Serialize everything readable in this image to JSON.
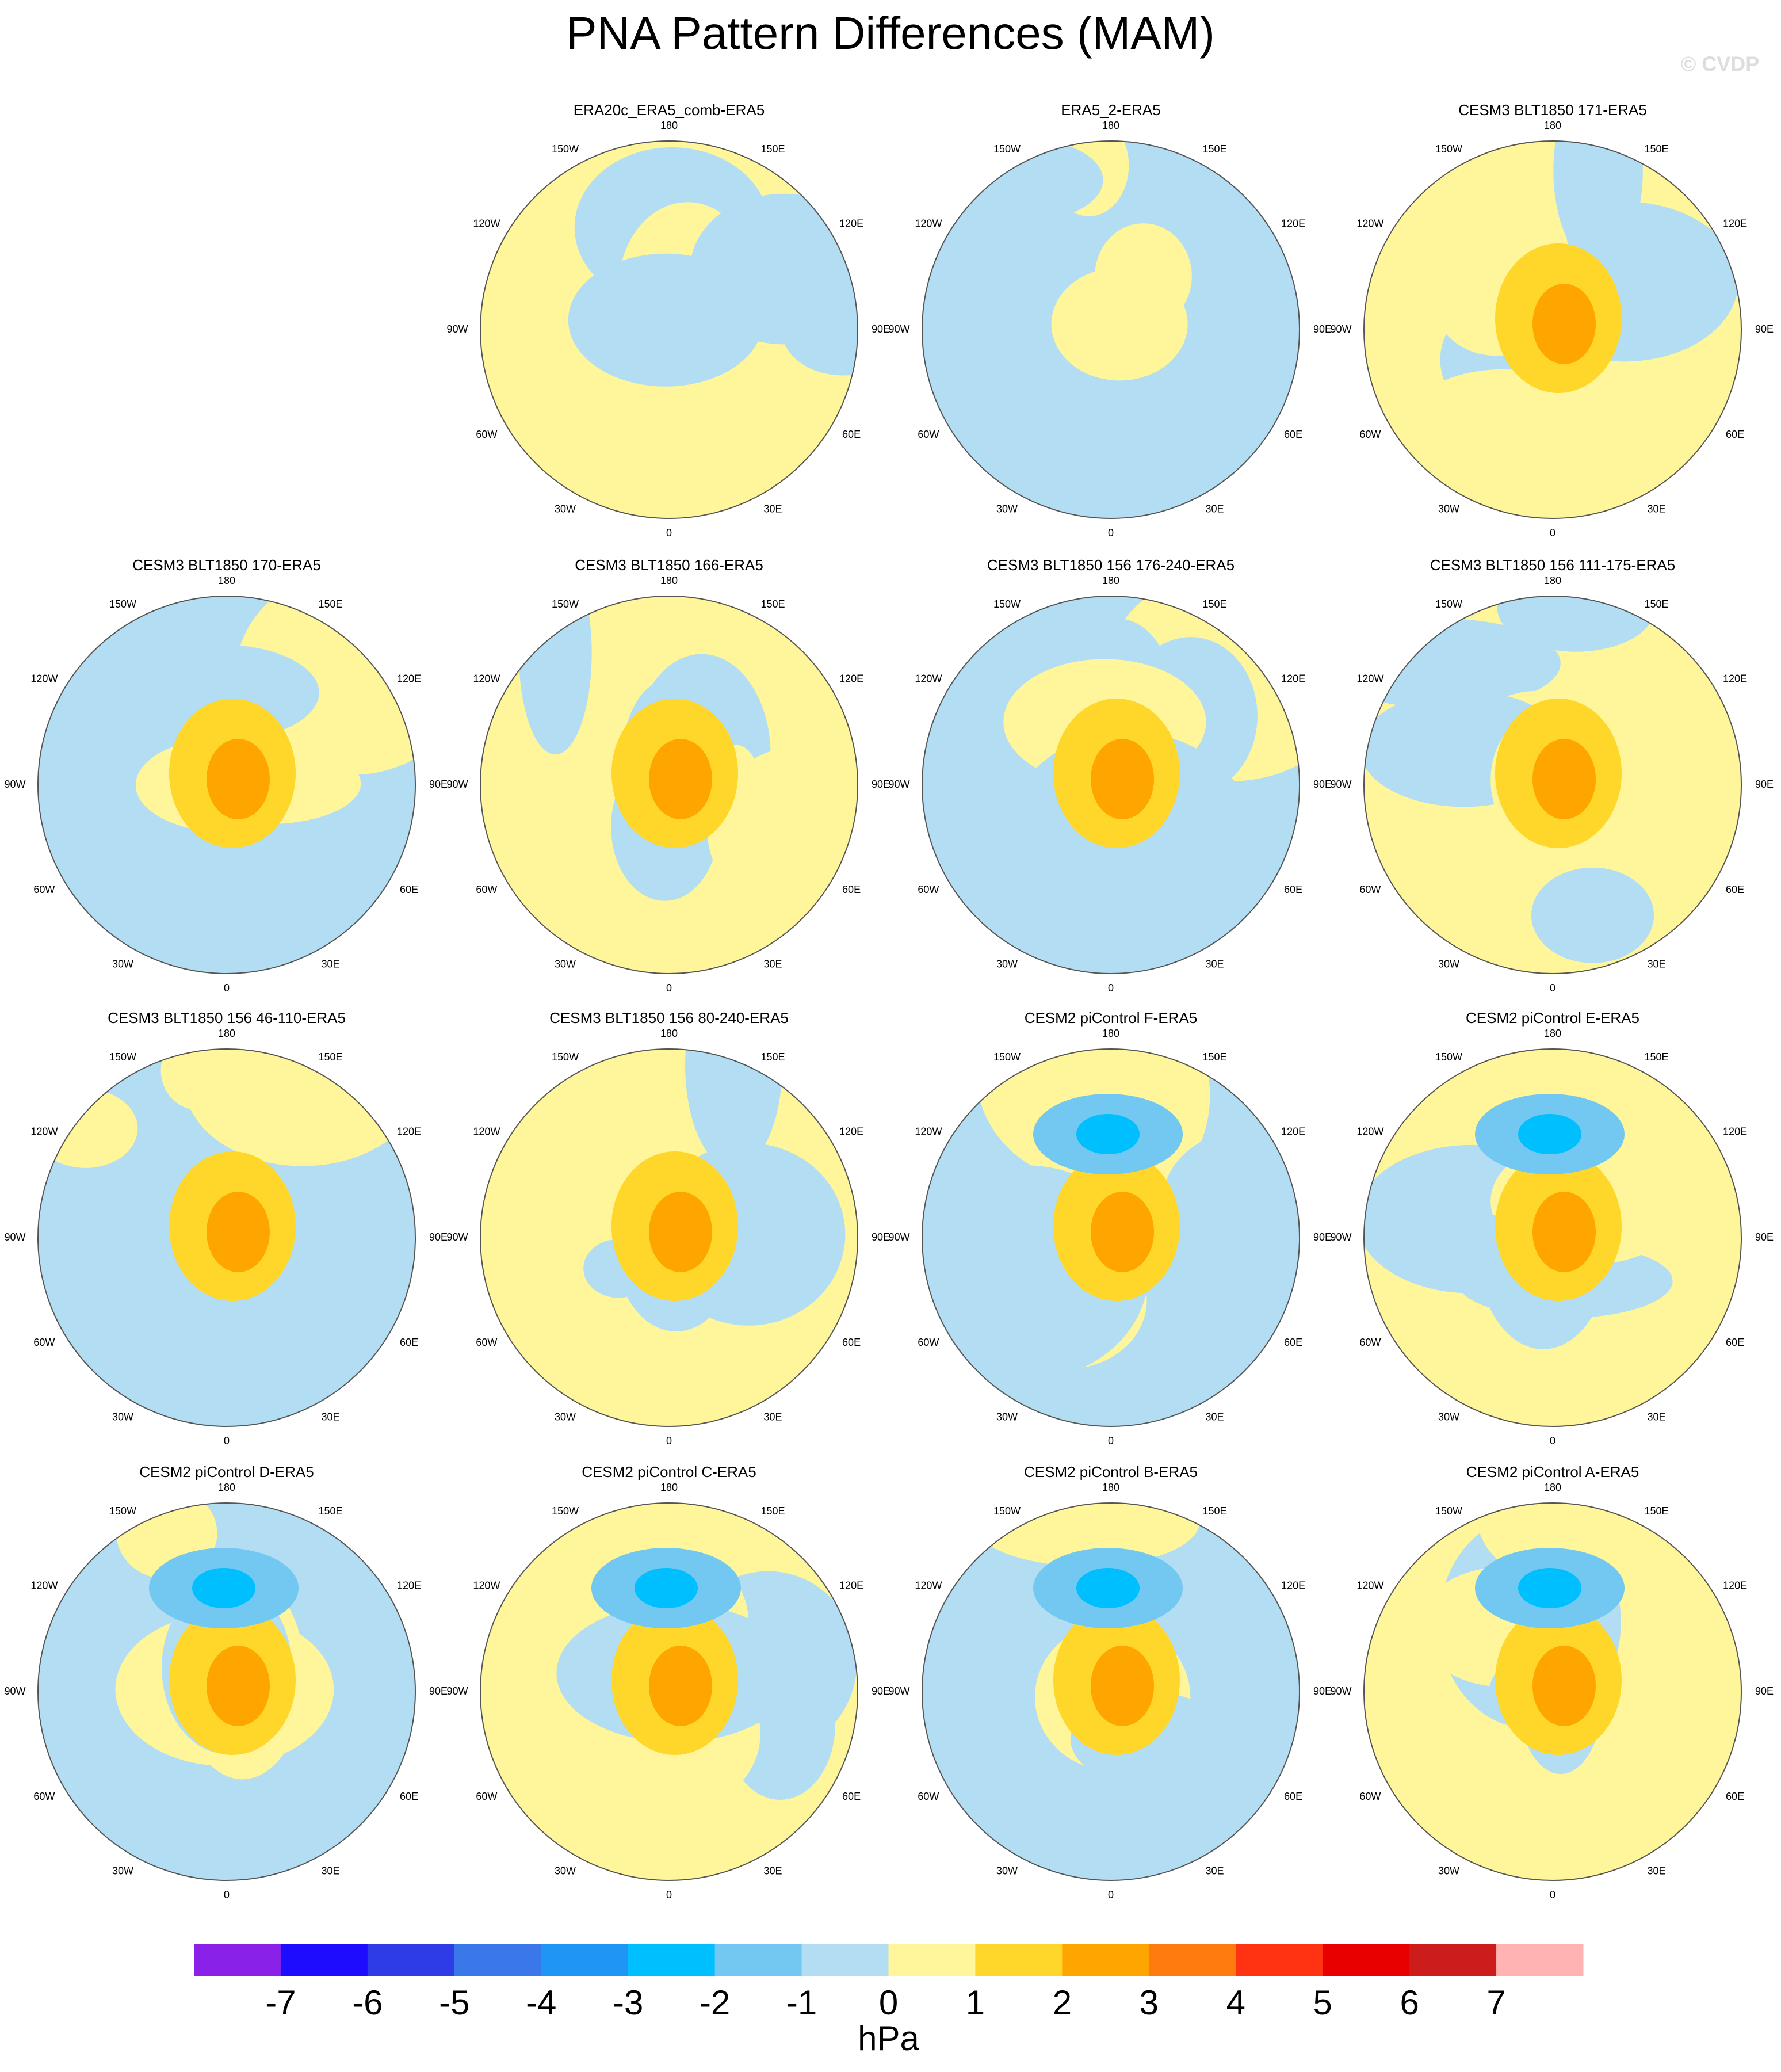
{
  "title": "PNA Pattern Differences (MAM)",
  "watermark": "© CVDP",
  "longitude_labels": [
    "0",
    "30E",
    "60E",
    "90E",
    "120E",
    "150E",
    "180",
    "150W",
    "120W",
    "90W",
    "60W",
    "30W"
  ],
  "panels": [
    {
      "title": "ERA20c_ERA5_comb-ERA5"
    },
    {
      "title": "ERA5_2-ERA5"
    },
    {
      "title": "CESM3 BLT1850 171-ERA5"
    },
    {
      "title": "CESM3 BLT1850 170-ERA5"
    },
    {
      "title": "CESM3 BLT1850 166-ERA5"
    },
    {
      "title": "CESM3 BLT1850 156 176-240-ERA5"
    },
    {
      "title": "CESM3 BLT1850 156 111-175-ERA5"
    },
    {
      "title": "CESM3 BLT1850 156 46-110-ERA5"
    },
    {
      "title": "CESM3 BLT1850 156 80-240-ERA5"
    },
    {
      "title": "CESM2 piControl F-ERA5"
    },
    {
      "title": "CESM2 piControl E-ERA5"
    },
    {
      "title": "CESM2 piControl D-ERA5"
    },
    {
      "title": "CESM2 piControl C-ERA5"
    },
    {
      "title": "CESM2 piControl B-ERA5"
    },
    {
      "title": "CESM2 piControl A-ERA5"
    }
  ],
  "colorbar": {
    "colors": [
      "#8a21e9",
      "#1e0cff",
      "#2d3ce6",
      "#3a78ea",
      "#1f96f5",
      "#00bfff",
      "#72c8f0",
      "#b3ddf2",
      "#fff59a",
      "#ffd72b",
      "#ffa500",
      "#ff7b0f",
      "#ff3212",
      "#e80000",
      "#cc1c1c",
      "#ffb3b3"
    ],
    "ticks": [
      -7,
      -6,
      -5,
      -4,
      -3,
      -2,
      -1,
      0,
      1,
      2,
      3,
      4,
      5,
      6,
      7
    ],
    "unit": "hPa"
  }
}
